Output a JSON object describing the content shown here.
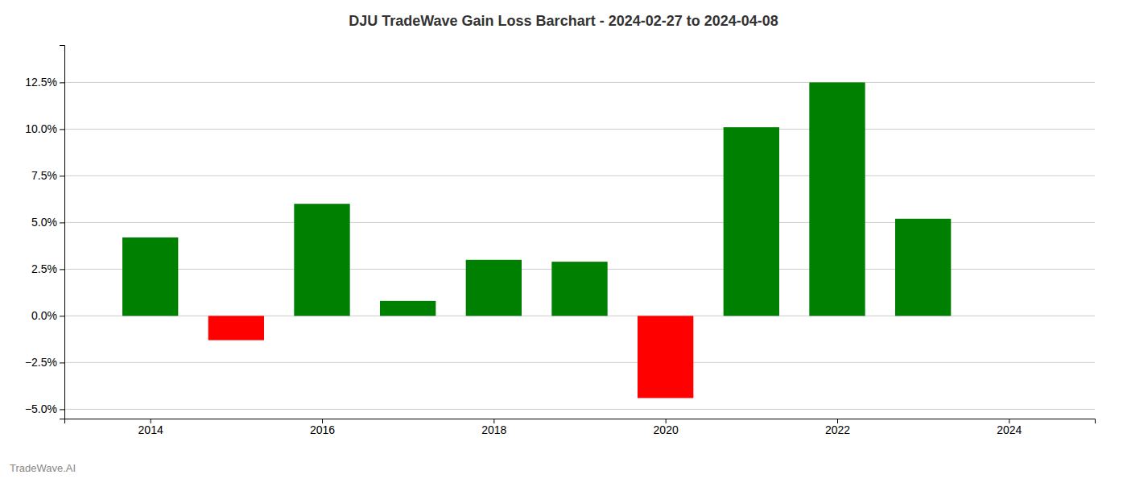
{
  "chart_data": {
    "type": "bar",
    "title": "DJU TradeWave Gain Loss Barchart - 2024-02-27 to 2024-04-08",
    "annotations": [
      "TradeWave.AI"
    ],
    "x": [
      2014,
      2015,
      2016,
      2017,
      2018,
      2019,
      2020,
      2021,
      2022,
      2023
    ],
    "values": [
      0.042,
      -0.013,
      0.06,
      0.008,
      0.03,
      0.029,
      -0.044,
      0.101,
      0.125,
      0.052
    ],
    "colors": [
      "#008000",
      "#ff0000",
      "#008000",
      "#008000",
      "#008000",
      "#008000",
      "#ff0000",
      "#008000",
      "#008000",
      "#008000"
    ],
    "xlim": [
      2013.0,
      2025.0
    ],
    "xticks": [
      2014,
      2016,
      2018,
      2020,
      2022,
      2024
    ],
    "ylim": [
      -0.055,
      0.145
    ],
    "yticks": [
      {
        "value": -0.05,
        "label": "−5.0%"
      },
      {
        "value": -0.025,
        "label": "−2.5%"
      },
      {
        "value": 0.0,
        "label": "0.0%"
      },
      {
        "value": 0.025,
        "label": "2.5%"
      },
      {
        "value": 0.05,
        "label": "5.0%"
      },
      {
        "value": 0.075,
        "label": "7.5%"
      },
      {
        "value": 0.1,
        "label": "10.0%"
      },
      {
        "value": 0.125,
        "label": "12.5%"
      }
    ],
    "grid": true
  }
}
